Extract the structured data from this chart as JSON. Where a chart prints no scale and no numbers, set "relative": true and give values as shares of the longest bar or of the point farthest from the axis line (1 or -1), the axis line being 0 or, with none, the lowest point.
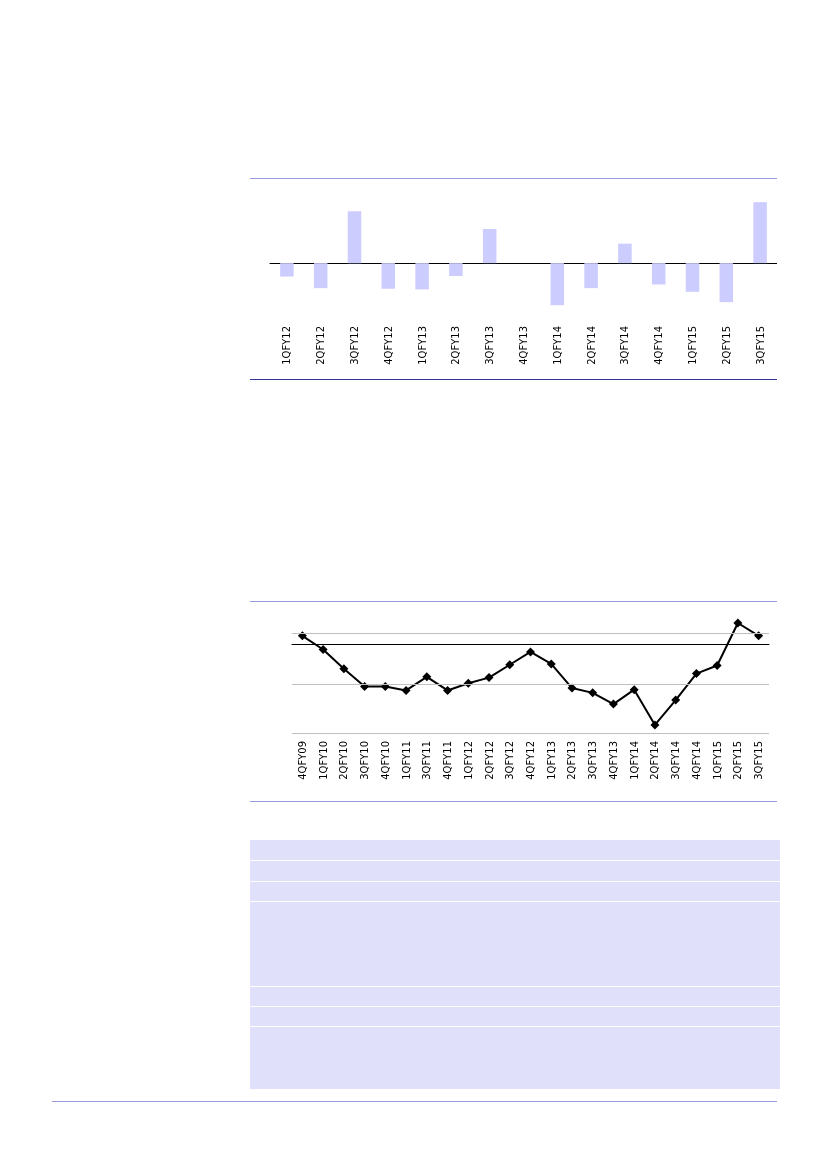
{
  "chart_data": [
    {
      "type": "bar",
      "relative": true,
      "categories": [
        "1QFY12",
        "2QFY12",
        "3QFY12",
        "4QFY12",
        "1QFY13",
        "2QFY13",
        "3QFY13",
        "4QFY13",
        "1QFY14",
        "2QFY14",
        "3QFY14",
        "4QFY14",
        "1QFY15",
        "2QFY15",
        "3QFY15"
      ],
      "color": "#ccccff",
      "values": [
        -0.22,
        -0.41,
        0.85,
        -0.42,
        -0.43,
        -0.21,
        0.56,
        0,
        -0.69,
        -0.41,
        0.32,
        -0.35,
        -0.47,
        -0.64,
        1
      ]
    },
    {
      "type": "line",
      "relative": true,
      "ref_lines": [
        {
          "axis": "y",
          "value": 0.14,
          "color": "#bfbfbf"
        },
        {
          "axis": "y",
          "value": -0.49,
          "color": "#bfbfbf"
        },
        {
          "axis": "y",
          "value": -1.1,
          "color": "#bfbfbf"
        }
      ],
      "marker": "diamond",
      "line_style": "solid",
      "color": "#000000",
      "categories": [
        "4QFY09",
        "1QFY10",
        "2QFY10",
        "3QFY10",
        "4QFY10",
        "1QFY11",
        "3QFY11",
        "4QFY11",
        "1QFY12",
        "2QFY12",
        "3QFY12",
        "4QFY12",
        "1QFY13",
        "2QFY13",
        "3QFY13",
        "4QFY13",
        "1QFY14",
        "2QFY14",
        "3QFY14",
        "4QFY14",
        "1QFY15",
        "2QFY15",
        "3QFY15"
      ],
      "values": [
        0.11,
        -0.06,
        -0.3,
        -0.52,
        -0.52,
        -0.57,
        -0.4,
        -0.57,
        -0.48,
        -0.41,
        -0.25,
        -0.09,
        -0.24,
        -0.54,
        -0.6,
        -0.74,
        -0.56,
        -1,
        -0.69,
        -0.36,
        -0.26,
        0.27,
        0.11
      ]
    }
  ]
}
